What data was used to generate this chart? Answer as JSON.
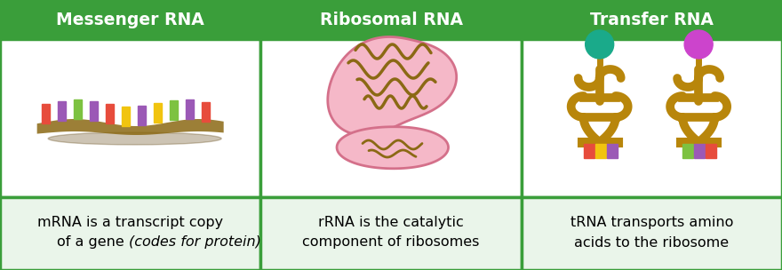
{
  "headers": [
    "Messenger RNA",
    "Ribosomal RNA",
    "Transfer RNA"
  ],
  "descriptions": [
    [
      "mRNA is a transcript copy",
      "of a gene  (codes for protein)"
    ],
    [
      "rRNA is the catalytic",
      "component of ribosomes"
    ],
    [
      "tRNA transports amino",
      "acids to the ribosome"
    ]
  ],
  "header_bg": "#3a9e3a",
  "header_text_color": "#ffffff",
  "cell_bg": "#ffffff",
  "desc_bg": "#eaf5ea",
  "border_color": "#3a9e3a",
  "fig_bg": "#ffffff",
  "header_fontsize": 13.5,
  "desc_fontsize": 11.5,
  "border_width": 2.5,
  "mrna_backbone_color": "#8B6914",
  "mrna_shadow_color": "#7a5c10",
  "mrna_bar_colors": [
    "#e74c3c",
    "#9b59b6",
    "#7dc241",
    "#9b59b6",
    "#e74c3c",
    "#f1c40f",
    "#9b59b6",
    "#f1c40f",
    "#7dc241",
    "#9b59b6",
    "#e74c3c"
  ],
  "rrna_fill": "#f5b8c8",
  "rrna_border": "#d4708a",
  "rrna_strand_color": "#8B6914",
  "gold": "#b8860b",
  "tRNA_ball1": "#1aaa8a",
  "tRNA_ball2": "#cc44cc"
}
